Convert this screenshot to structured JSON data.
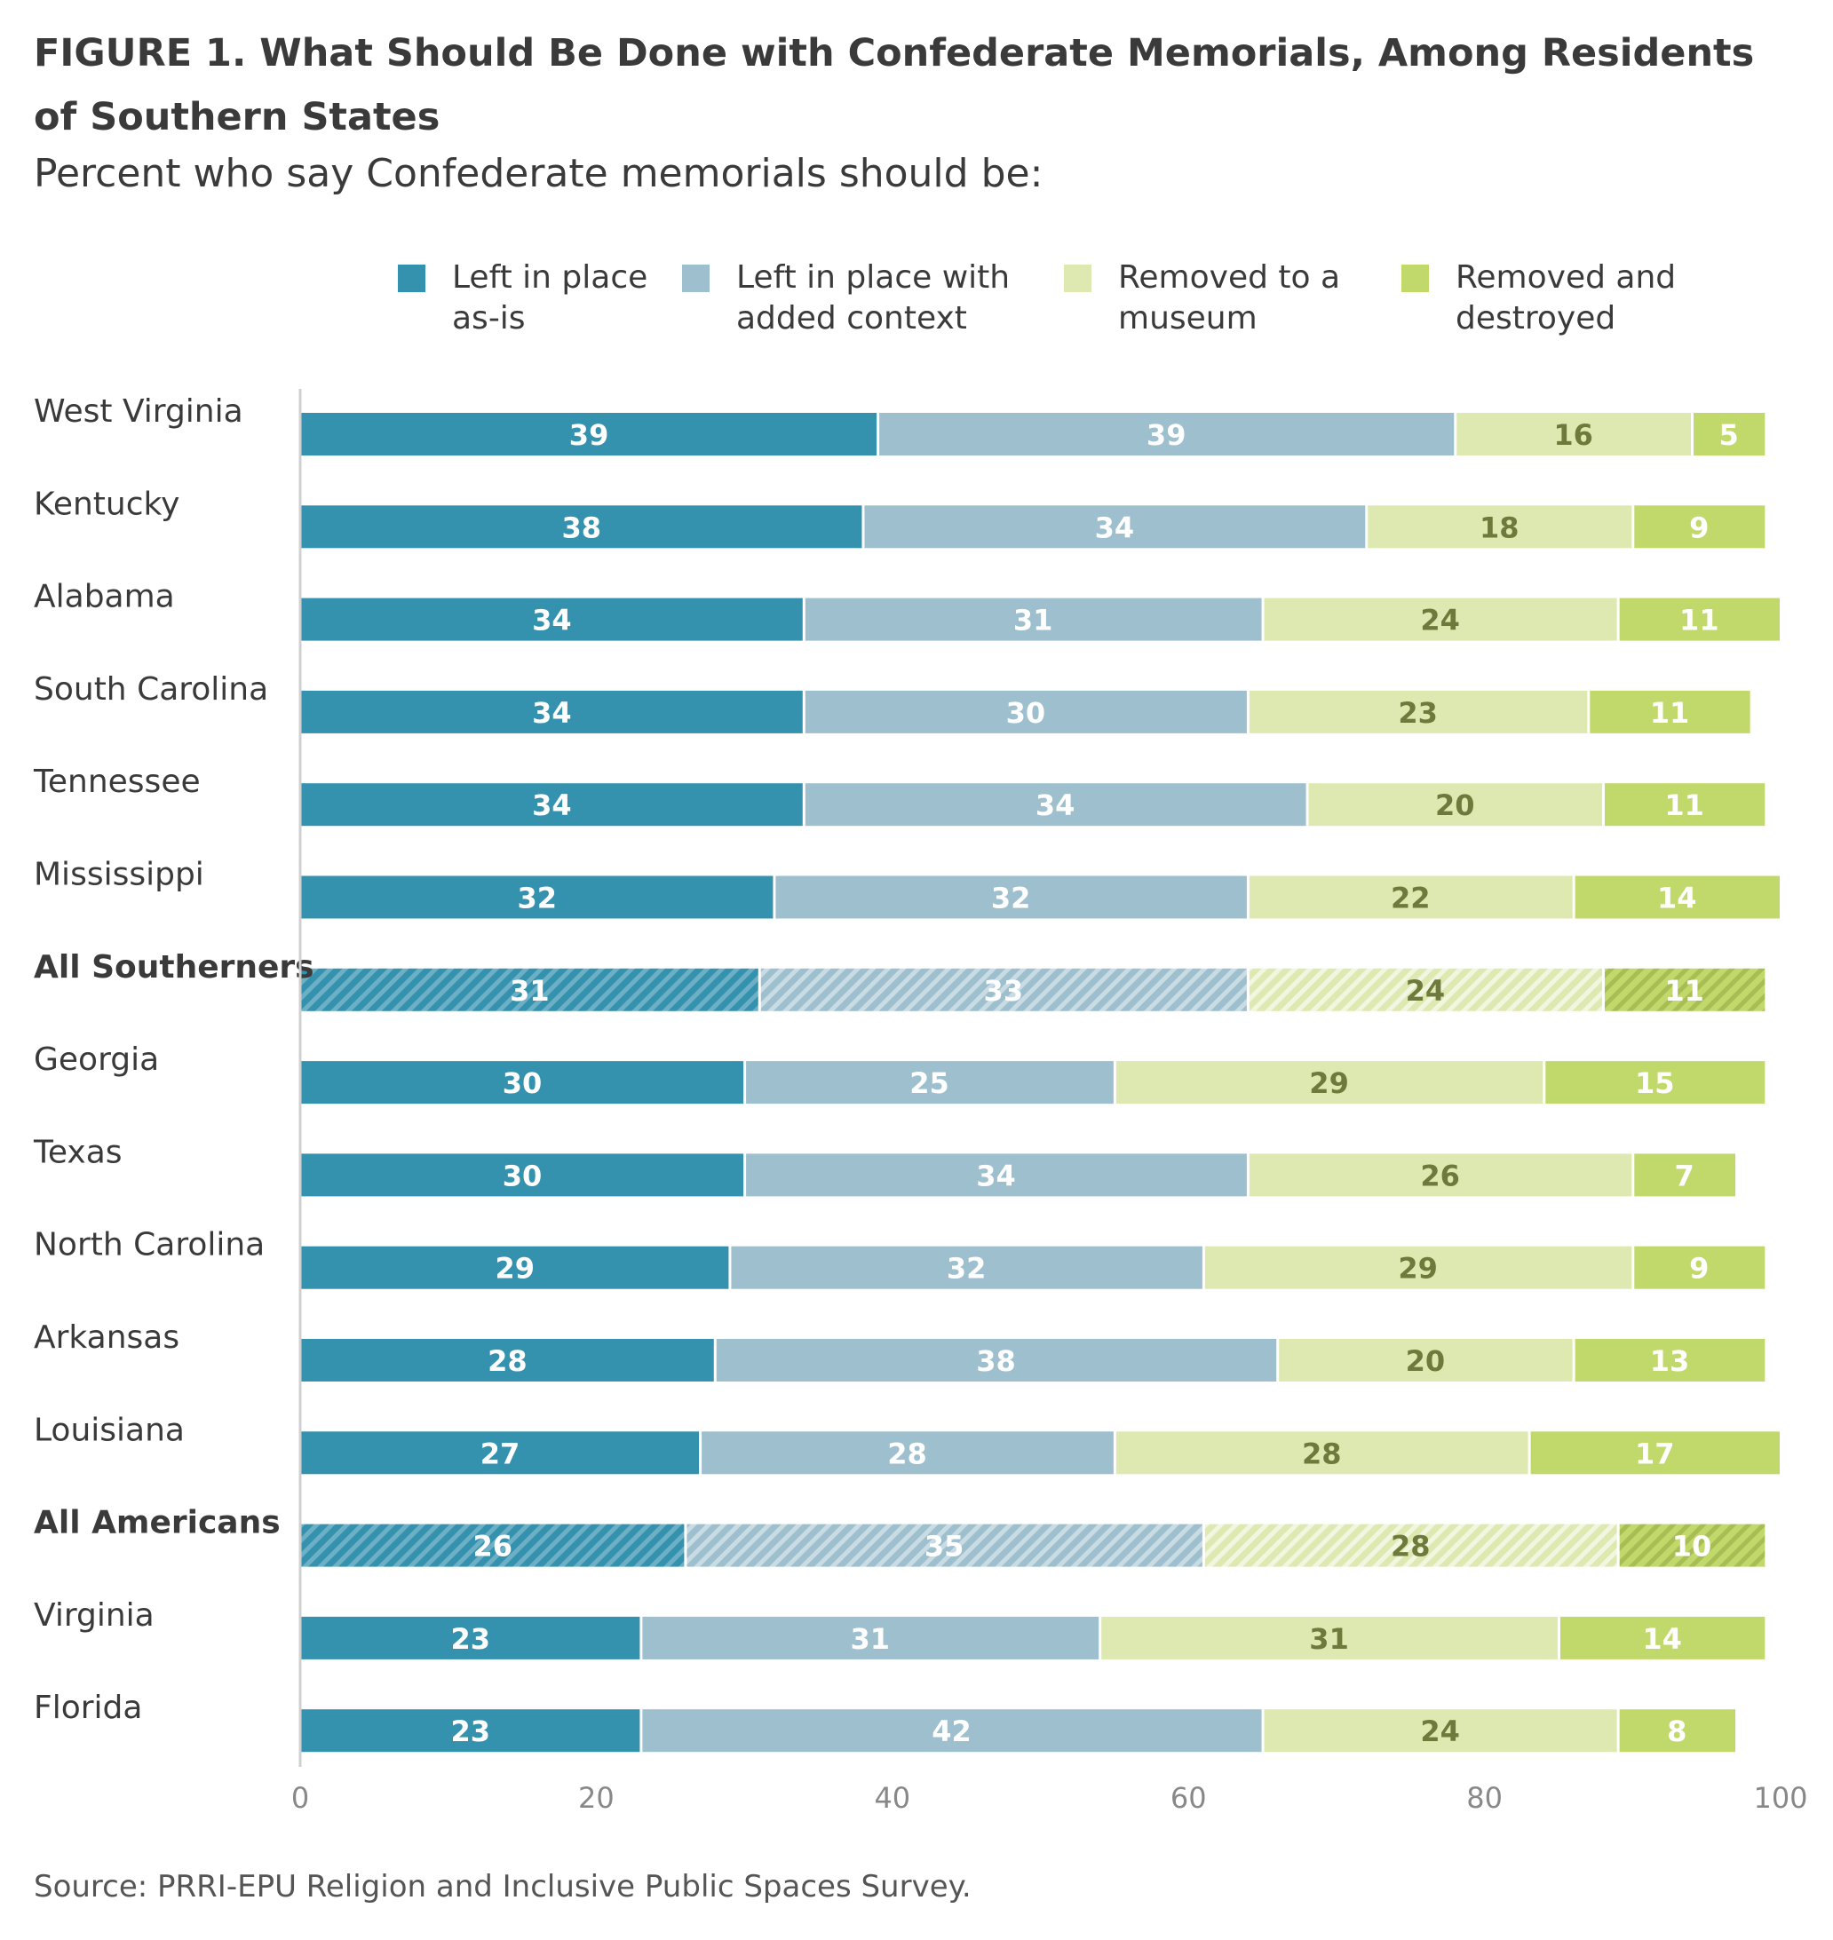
{
  "figure": {
    "title": "FIGURE 1.  What Should Be Done with Confederate Memorials, Among Residents of Southern States",
    "subtitle": "Percent who say Confederate memorials should be:",
    "source": "Source: PRRI-EPU Religion and Inclusive Public Spaces Survey."
  },
  "colors": {
    "left_as_is": "#3592ae",
    "left_with_context": "#9dbfce",
    "removed_museum": "#dee9b1",
    "removed_destroyed": "#c1d86b"
  },
  "chart_data": {
    "type": "bar",
    "orientation": "horizontal",
    "stacked": true,
    "categories": [
      "West Virginia",
      "Kentucky",
      "Alabama",
      "South Carolina",
      "Tennessee",
      "Mississippi",
      "All Southerners",
      "Georgia",
      "Texas",
      "North Carolina",
      "Arkansas",
      "Louisiana",
      "All Americans",
      "Virginia",
      "Florida"
    ],
    "highlighted_categories": [
      "All Southerners",
      "All Americans"
    ],
    "series": [
      {
        "name": "Left in place as-is",
        "values": [
          39,
          38,
          34,
          34,
          34,
          32,
          31,
          30,
          30,
          29,
          28,
          27,
          26,
          23,
          23
        ]
      },
      {
        "name": "Left in place with added context",
        "values": [
          39,
          34,
          31,
          30,
          34,
          32,
          33,
          25,
          34,
          32,
          38,
          28,
          35,
          31,
          42
        ]
      },
      {
        "name": "Removed to a museum",
        "values": [
          16,
          18,
          24,
          23,
          20,
          22,
          24,
          29,
          26,
          29,
          20,
          28,
          28,
          31,
          24
        ]
      },
      {
        "name": "Removed and destroyed",
        "values": [
          5,
          9,
          11,
          11,
          11,
          14,
          11,
          15,
          7,
          9,
          13,
          17,
          10,
          14,
          8
        ]
      }
    ],
    "xlim": [
      0,
      100
    ],
    "xticks": [
      0,
      20,
      40,
      60,
      80,
      100
    ],
    "grid": false,
    "legend_position": "top"
  }
}
